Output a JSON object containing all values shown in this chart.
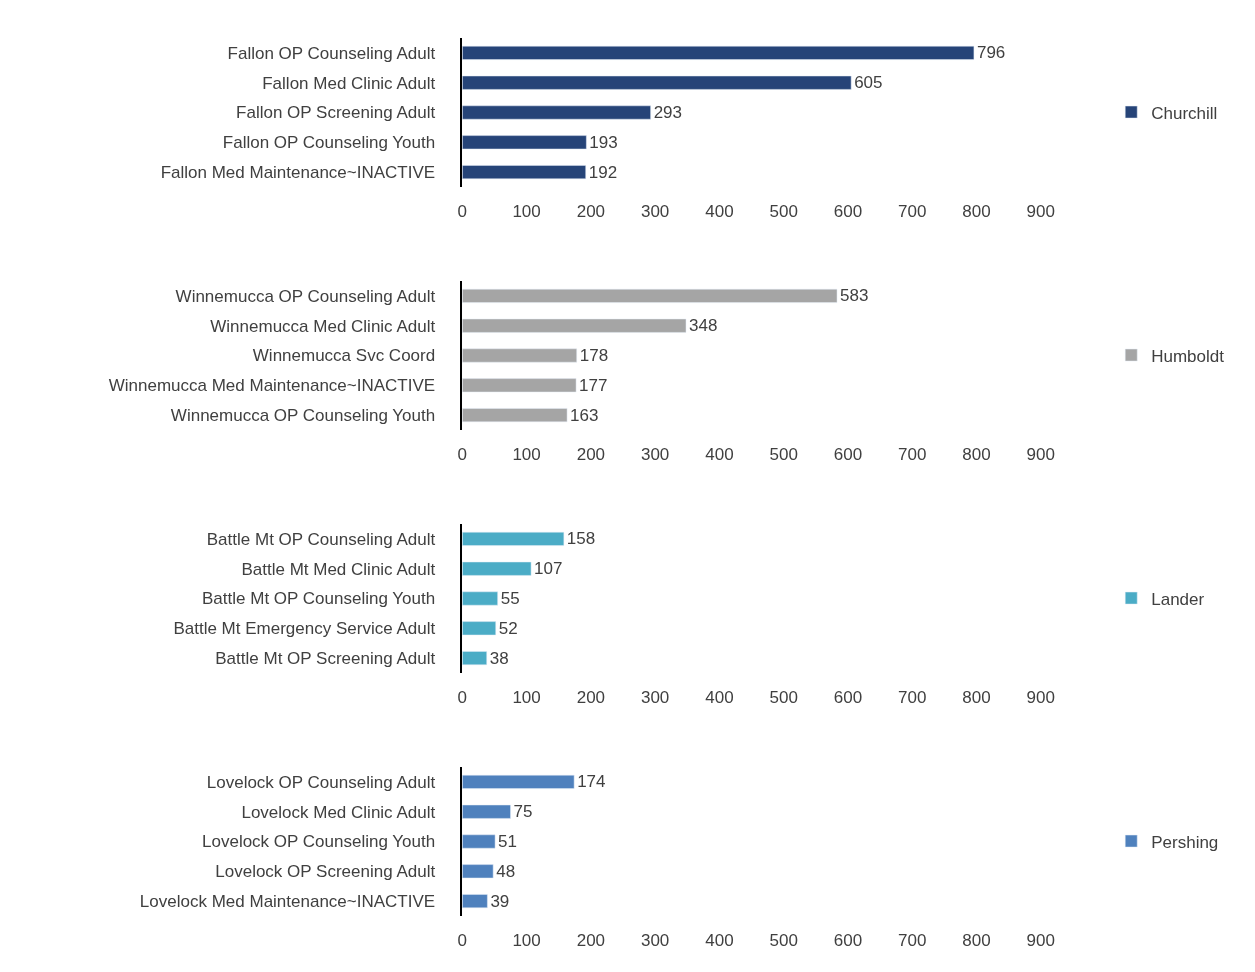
{
  "chart_data": [
    {
      "type": "bar",
      "orientation": "horizontal",
      "categories": [
        "Fallon OP Counseling Adult",
        "Fallon Med Clinic Adult",
        "Fallon OP Screening Adult",
        "Fallon OP Counseling Youth",
        "Fallon Med Maintenance~INACTIVE"
      ],
      "series": [
        {
          "name": "Churchill",
          "color": "#264478",
          "values": [
            796,
            605,
            293,
            193,
            192
          ]
        }
      ],
      "xlim": [
        0,
        900
      ],
      "xticks": [
        0,
        100,
        200,
        300,
        400,
        500,
        600,
        700,
        800,
        900
      ],
      "data_labels": true,
      "legend": "right"
    },
    {
      "type": "bar",
      "orientation": "horizontal",
      "categories": [
        "Winnemucca OP Counseling Adult",
        "Winnemucca Med Clinic Adult",
        "Winnemucca Svc Coord",
        "Winnemucca Med Maintenance~INACTIVE",
        "Winnemucca OP Counseling Youth"
      ],
      "series": [
        {
          "name": "Humboldt",
          "color": "#a5a5a5",
          "values": [
            583,
            348,
            178,
            177,
            163
          ]
        }
      ],
      "xlim": [
        0,
        900
      ],
      "xticks": [
        0,
        100,
        200,
        300,
        400,
        500,
        600,
        700,
        800,
        900
      ],
      "data_labels": true,
      "legend": "right"
    },
    {
      "type": "bar",
      "orientation": "horizontal",
      "categories": [
        "Battle Mt OP Counseling Adult",
        "Battle Mt Med Clinic Adult",
        "Battle Mt OP Counseling Youth",
        "Battle Mt Emergency Service Adult",
        "Battle Mt OP Screening Adult"
      ],
      "series": [
        {
          "name": "Lander",
          "color": "#4bacc6",
          "values": [
            158,
            107,
            55,
            52,
            38
          ]
        }
      ],
      "xlim": [
        0,
        900
      ],
      "xticks": [
        0,
        100,
        200,
        300,
        400,
        500,
        600,
        700,
        800,
        900
      ],
      "data_labels": true,
      "legend": "right"
    },
    {
      "type": "bar",
      "orientation": "horizontal",
      "categories": [
        "Lovelock OP Counseling Adult",
        "Lovelock Med Clinic Adult",
        "Lovelock OP Counseling Youth",
        "Lovelock OP Screening Adult",
        "Lovelock Med Maintenance~INACTIVE"
      ],
      "series": [
        {
          "name": "Pershing",
          "color": "#4f81bd",
          "values": [
            174,
            75,
            51,
            48,
            39
          ]
        }
      ],
      "xlim": [
        0,
        900
      ],
      "xticks": [
        0,
        100,
        200,
        300,
        400,
        500,
        600,
        700,
        800,
        900
      ],
      "data_labels": true,
      "legend": "right"
    }
  ]
}
